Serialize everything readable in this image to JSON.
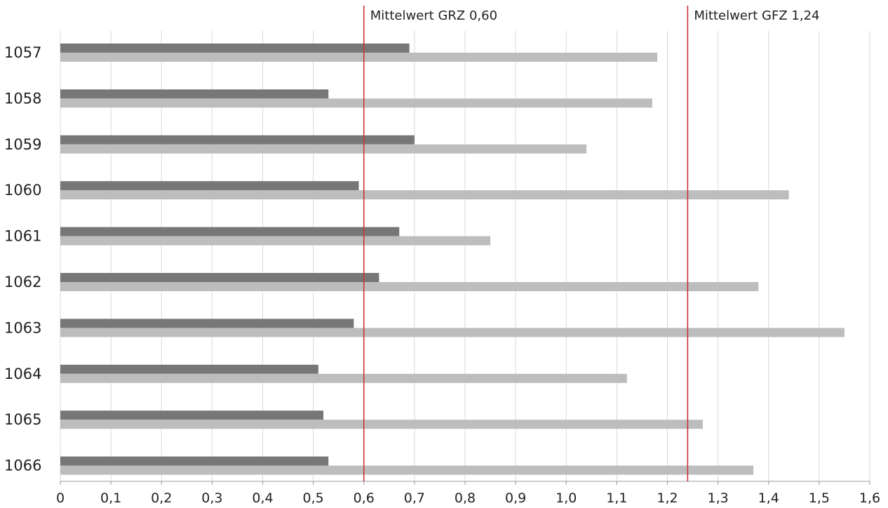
{
  "chart_data": {
    "type": "bar",
    "orientation": "horizontal",
    "categories": [
      "1057",
      "1058",
      "1059",
      "1060",
      "1061",
      "1062",
      "1063",
      "1064",
      "1065",
      "1066"
    ],
    "series": [
      {
        "values": [
          0.69,
          0.53,
          0.7,
          0.59,
          0.67,
          0.63,
          0.58,
          0.51,
          0.52,
          0.53
        ],
        "color": "#777777"
      },
      {
        "values": [
          1.18,
          1.17,
          1.04,
          1.44,
          0.85,
          1.38,
          1.55,
          1.12,
          1.27,
          1.37
        ],
        "color": "#bdbdbd"
      }
    ],
    "xlim": [
      0,
      1.6
    ],
    "xticks": [
      0,
      0.1,
      0.2,
      0.3,
      0.4,
      0.5,
      0.6,
      0.7,
      0.8,
      0.9,
      1.0,
      1.1,
      1.2,
      1.3,
      1.4,
      1.5,
      1.6
    ],
    "xtick_labels": [
      "0",
      "0,1",
      "0,2",
      "0,3",
      "0,4",
      "0,5",
      "0,6",
      "0,7",
      "0,8",
      "0,9",
      "1,0",
      "1,1",
      "1,2",
      "1,3",
      "1,4",
      "1,5",
      "1,6"
    ],
    "grid": "vertical",
    "reference_lines": [
      {
        "value": 0.6,
        "label": "Mittelwert GRZ 0,60",
        "color": "#c8323c"
      },
      {
        "value": 1.24,
        "label": "Mittelwert GFZ 1,24",
        "color": "#c8323c"
      }
    ],
    "legend": "none"
  }
}
